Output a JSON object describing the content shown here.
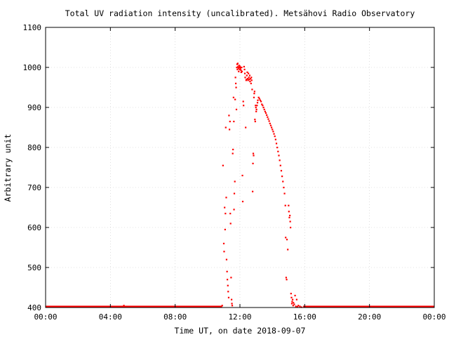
{
  "chart_data": {
    "type": "scatter",
    "title": "Total UV radiation intensity (uncalibrated). Metsähovi Radio Observatory",
    "xlabel": "Time UT, on date 2018-09-07",
    "ylabel": "Arbitrary unit",
    "xlim": [
      0,
      24
    ],
    "ylim": [
      400,
      1100
    ],
    "xticks": [
      0,
      4,
      8,
      12,
      16,
      20,
      24
    ],
    "xtick_labels": [
      "00:00",
      "04:00",
      "08:00",
      "12:00",
      "16:00",
      "20:00",
      "00:00"
    ],
    "yticks": [
      400,
      500,
      600,
      700,
      800,
      900,
      1000,
      1100
    ],
    "ytick_labels": [
      "400",
      "500",
      "600",
      "700",
      "800",
      "900",
      "1000",
      "1100"
    ],
    "grid": true,
    "marker_color": "#ff0000",
    "baseline": {
      "y": 401,
      "x_ranges": [
        [
          0,
          10.9
        ],
        [
          15.9,
          24
        ]
      ]
    },
    "series": [
      {
        "values": [
          [
            4.83,
            405
          ],
          [
            10.9,
            405
          ],
          [
            10.95,
            755
          ],
          [
            11.0,
            560
          ],
          [
            11.02,
            540
          ],
          [
            11.05,
            650
          ],
          [
            11.08,
            595
          ],
          [
            11.1,
            635
          ],
          [
            11.12,
            850
          ],
          [
            11.15,
            675
          ],
          [
            11.17,
            520
          ],
          [
            11.2,
            490
          ],
          [
            11.22,
            470
          ],
          [
            11.25,
            455
          ],
          [
            11.27,
            440
          ],
          [
            11.3,
            425
          ],
          [
            11.32,
            880
          ],
          [
            11.35,
            845
          ],
          [
            11.38,
            865
          ],
          [
            11.4,
            635
          ],
          [
            11.42,
            610
          ],
          [
            11.45,
            475
          ],
          [
            11.48,
            420
          ],
          [
            11.5,
            410
          ],
          [
            11.52,
            405
          ],
          [
            11.55,
            785
          ],
          [
            11.57,
            795
          ],
          [
            11.6,
            925
          ],
          [
            11.62,
            865
          ],
          [
            11.63,
            645
          ],
          [
            11.65,
            685
          ],
          [
            11.68,
            715
          ],
          [
            11.7,
            920
          ],
          [
            11.72,
            975
          ],
          [
            11.74,
            960
          ],
          [
            11.76,
            950
          ],
          [
            11.78,
            895
          ],
          [
            11.8,
            1000
          ],
          [
            11.82,
            1008
          ],
          [
            11.84,
            995
          ],
          [
            11.86,
            1010
          ],
          [
            11.88,
            1002
          ],
          [
            11.9,
            998
          ],
          [
            11.92,
            990
          ],
          [
            11.94,
            1005
          ],
          [
            11.96,
            1000
          ],
          [
            11.98,
            995
          ],
          [
            12.0,
            1003
          ],
          [
            12.02,
            997
          ],
          [
            12.04,
            1000
          ],
          [
            12.06,
            993
          ],
          [
            12.08,
            988
          ],
          [
            12.1,
            1000
          ],
          [
            12.12,
            990
          ],
          [
            12.15,
            730
          ],
          [
            12.17,
            665
          ],
          [
            12.2,
            915
          ],
          [
            12.22,
            905
          ],
          [
            12.25,
            1002
          ],
          [
            12.28,
            995
          ],
          [
            12.3,
            985
          ],
          [
            12.32,
            975
          ],
          [
            12.35,
            850
          ],
          [
            12.38,
            968
          ],
          [
            12.4,
            970
          ],
          [
            12.42,
            980
          ],
          [
            12.45,
            988
          ],
          [
            12.48,
            972
          ],
          [
            12.5,
            968
          ],
          [
            12.52,
            985
          ],
          [
            12.55,
            975
          ],
          [
            12.58,
            970
          ],
          [
            12.6,
            980
          ],
          [
            12.62,
            965
          ],
          [
            12.65,
            972
          ],
          [
            12.68,
            960
          ],
          [
            12.7,
            975
          ],
          [
            12.72,
            968
          ],
          [
            12.75,
            945
          ],
          [
            12.78,
            690
          ],
          [
            12.8,
            760
          ],
          [
            12.82,
            785
          ],
          [
            12.84,
            780
          ],
          [
            12.86,
            925
          ],
          [
            12.88,
            935
          ],
          [
            12.9,
            940
          ],
          [
            12.92,
            870
          ],
          [
            12.94,
            865
          ],
          [
            12.96,
            905
          ],
          [
            12.98,
            900
          ],
          [
            13.0,
            890
          ],
          [
            13.02,
            895
          ],
          [
            13.05,
            905
          ],
          [
            13.08,
            912
          ],
          [
            13.1,
            918
          ],
          [
            13.15,
            925
          ],
          [
            13.2,
            922
          ],
          [
            13.25,
            918
          ],
          [
            13.3,
            915
          ],
          [
            13.35,
            908
          ],
          [
            13.4,
            905
          ],
          [
            13.45,
            900
          ],
          [
            13.5,
            895
          ],
          [
            13.55,
            890
          ],
          [
            13.6,
            886
          ],
          [
            13.65,
            881
          ],
          [
            13.7,
            876
          ],
          [
            13.75,
            871
          ],
          [
            13.8,
            866
          ],
          [
            13.85,
            860
          ],
          [
            13.9,
            855
          ],
          [
            13.95,
            850
          ],
          [
            14.0,
            845
          ],
          [
            14.05,
            840
          ],
          [
            14.1,
            834
          ],
          [
            14.15,
            828
          ],
          [
            14.2,
            820
          ],
          [
            14.25,
            810
          ],
          [
            14.3,
            800
          ],
          [
            14.35,
            790
          ],
          [
            14.4,
            780
          ],
          [
            14.45,
            768
          ],
          [
            14.5,
            755
          ],
          [
            14.55,
            742
          ],
          [
            14.6,
            728
          ],
          [
            14.65,
            715
          ],
          [
            14.7,
            700
          ],
          [
            14.75,
            685
          ],
          [
            14.8,
            655
          ],
          [
            14.82,
            575
          ],
          [
            14.85,
            475
          ],
          [
            14.88,
            470
          ],
          [
            14.9,
            570
          ],
          [
            14.95,
            545
          ],
          [
            15.0,
            655
          ],
          [
            15.02,
            640
          ],
          [
            15.05,
            625
          ],
          [
            15.08,
            630
          ],
          [
            15.1,
            615
          ],
          [
            15.12,
            600
          ],
          [
            15.15,
            435
          ],
          [
            15.18,
            425
          ],
          [
            15.2,
            410
          ],
          [
            15.22,
            415
          ],
          [
            15.25,
            420
          ],
          [
            15.28,
            405
          ],
          [
            15.3,
            412
          ],
          [
            15.35,
            408
          ],
          [
            15.4,
            430
          ],
          [
            15.45,
            403
          ],
          [
            15.5,
            420
          ],
          [
            15.55,
            402
          ],
          [
            15.6,
            405
          ],
          [
            15.7,
            403
          ],
          [
            15.8,
            401
          ]
        ]
      }
    ]
  }
}
